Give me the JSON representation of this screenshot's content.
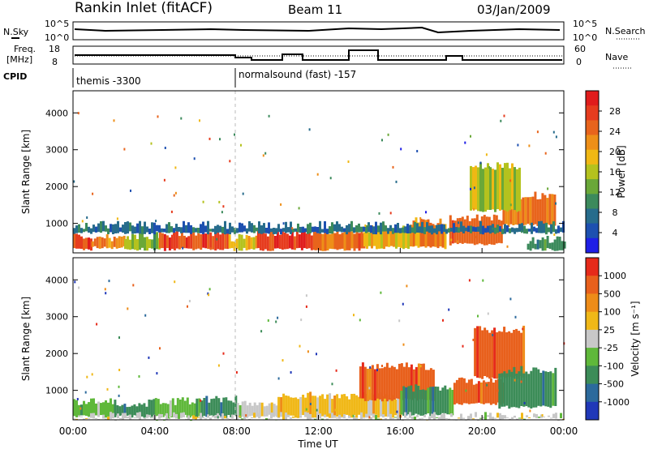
{
  "header": {
    "station": "Rankin Inlet (fitACF)",
    "beam": "Beam 11",
    "date": "03/Jan/2009"
  },
  "top_panels": {
    "nsky": {
      "label": "N.Sky",
      "ticks": [
        "10^5",
        "10^0"
      ],
      "right_label": "N.Search",
      "right_ticks": [
        "10^5",
        "10^0"
      ]
    },
    "freq": {
      "label_line1": "Freq.",
      "label_line2": "[MHz]",
      "ticks": [
        "18",
        "8"
      ],
      "right_label": "Nave",
      "right_ticks": [
        "60",
        "0"
      ]
    },
    "cpid": {
      "label": "CPID",
      "entries": [
        {
          "text": "themis -3300",
          "start_hour": 0
        },
        {
          "text": "normalsound (fast) -157",
          "start_hour": 8.0
        }
      ]
    }
  },
  "chart_data": [
    {
      "type": "heatmap",
      "name": "power",
      "ylabel": "Slant Range [km]",
      "xlabel": "",
      "ylim": [
        200,
        4600
      ],
      "xlim": [
        0,
        24
      ],
      "y_ticks": [
        "1000",
        "2000",
        "3000",
        "4000"
      ],
      "colorbar": {
        "label": "Power [dB]",
        "ticks": [
          "4",
          "8",
          "12",
          "16",
          "20",
          "24",
          "28"
        ],
        "range": [
          0,
          32
        ],
        "colors": [
          "#1f1fe6",
          "#1d50b0",
          "#276c8c",
          "#3c8a5c",
          "#6aa838",
          "#b4c21e",
          "#f0b814",
          "#ee8f18",
          "#e8641c",
          "#e63c1e",
          "#e01c1c"
        ]
      },
      "segments": [
        {
          "h0": 0.0,
          "h1": 0.9,
          "r0": 250,
          "r1": 700,
          "level": 28
        },
        {
          "h0": 0.9,
          "h1": 2.5,
          "r0": 300,
          "r1": 650,
          "level": 22
        },
        {
          "h0": 2.5,
          "h1": 4.2,
          "r0": 250,
          "r1": 700,
          "level": 14
        },
        {
          "h0": 4.2,
          "h1": 5.6,
          "r0": 250,
          "r1": 750,
          "level": 29
        },
        {
          "h0": 5.6,
          "h1": 7.6,
          "r0": 250,
          "r1": 800,
          "level": 28
        },
        {
          "h0": 7.6,
          "h1": 9.0,
          "r0": 250,
          "r1": 650,
          "level": 18
        },
        {
          "h0": 9.0,
          "h1": 11.8,
          "r0": 250,
          "r1": 800,
          "level": 29
        },
        {
          "h0": 11.8,
          "h1": 14.2,
          "r0": 250,
          "r1": 850,
          "level": 25
        },
        {
          "h0": 14.2,
          "h1": 16.6,
          "r0": 300,
          "r1": 900,
          "level": 20
        },
        {
          "h0": 16.6,
          "h1": 18.2,
          "r0": 300,
          "r1": 1100,
          "level": 22
        },
        {
          "h0": 18.4,
          "h1": 21.0,
          "r0": 400,
          "r1": 1200,
          "level": 26
        },
        {
          "h0": 21.0,
          "h1": 23.6,
          "r0": 900,
          "r1": 1800,
          "level": 24
        },
        {
          "h0": 19.4,
          "h1": 21.8,
          "r0": 1300,
          "r1": 2600,
          "level": 16
        },
        {
          "h0": 22.2,
          "h1": 24.0,
          "r0": 250,
          "r1": 600,
          "level": 10
        },
        {
          "h0": 0.0,
          "h1": 24.0,
          "r0": 700,
          "r1": 1000,
          "level": 6
        }
      ]
    },
    {
      "type": "heatmap",
      "name": "velocity",
      "ylabel": "Slant Range [km]",
      "xlabel": "Time UT",
      "ylim": [
        200,
        4600
      ],
      "xlim": [
        0,
        24
      ],
      "y_ticks": [
        "1000",
        "2000",
        "3000",
        "4000"
      ],
      "x_ticks": [
        "00:00",
        "04:00",
        "08:00",
        "12:00",
        "16:00",
        "20:00",
        "00:00"
      ],
      "colorbar": {
        "label": "Velocity [m s⁻¹]",
        "ticks": [
          "1000",
          "500",
          "100",
          "25",
          "-25",
          "-100",
          "-500",
          "-1000"
        ],
        "colors": [
          "#2038b8",
          "#2c6a9c",
          "#3c8c58",
          "#5fb83a",
          "#c8c8c8",
          "#f0b818",
          "#ee8c18",
          "#e8601c",
          "#e62a1a"
        ]
      },
      "segments": [
        {
          "h0": 0.0,
          "h1": 2.0,
          "r0": 250,
          "r1": 750,
          "level": 3
        },
        {
          "h0": 2.0,
          "h1": 4.0,
          "r0": 250,
          "r1": 700,
          "level": 2
        },
        {
          "h0": 4.0,
          "h1": 6.0,
          "r0": 250,
          "r1": 750,
          "level": 3
        },
        {
          "h0": 6.0,
          "h1": 8.0,
          "r0": 250,
          "r1": 800,
          "level": 2
        },
        {
          "h0": 8.0,
          "h1": 10.0,
          "r0": 250,
          "r1": 700,
          "level": 4
        },
        {
          "h0": 10.0,
          "h1": 16.0,
          "r0": 250,
          "r1": 900,
          "level": 5
        },
        {
          "h0": 14.0,
          "h1": 17.6,
          "r0": 700,
          "r1": 1700,
          "level": 7
        },
        {
          "h0": 16.0,
          "h1": 18.6,
          "r0": 300,
          "r1": 1100,
          "level": 2
        },
        {
          "h0": 18.6,
          "h1": 21.0,
          "r0": 600,
          "r1": 1300,
          "level": 7
        },
        {
          "h0": 19.6,
          "h1": 22.0,
          "r0": 1300,
          "r1": 2700,
          "level": 7
        },
        {
          "h0": 20.8,
          "h1": 23.6,
          "r0": 500,
          "r1": 1600,
          "level": 2
        },
        {
          "h0": 0.0,
          "h1": 24.0,
          "r0": 200,
          "r1": 350,
          "level": 4
        }
      ]
    }
  ]
}
